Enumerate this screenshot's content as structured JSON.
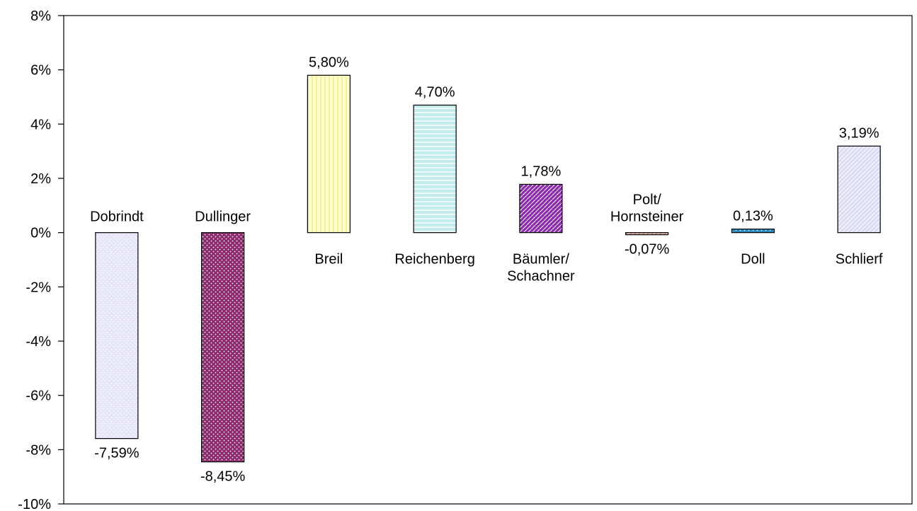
{
  "chart_data": {
    "type": "bar",
    "title": "",
    "xlabel": "",
    "ylabel": "",
    "ylim": [
      -10,
      8
    ],
    "ytick_step": 2,
    "ytick_labels": [
      "-10%",
      "-8%",
      "-6%",
      "-4%",
      "-2%",
      "0%",
      "2%",
      "4%",
      "6%",
      "8%"
    ],
    "grid": false,
    "legend": "none",
    "categories": [
      "Dobrindt",
      "Dullinger",
      "Breil",
      "Reichenberg",
      "Bäumler/\nSchachner",
      "Polt/\nHornsteiner",
      "Doll",
      "Schlierf"
    ],
    "values": [
      -7.59,
      -8.45,
      5.8,
      4.7,
      1.78,
      -0.07,
      0.13,
      3.19
    ],
    "value_labels": [
      "-7,59%",
      "-8,45%",
      "5,80%",
      "4,70%",
      "1,78%",
      "-0,07%",
      "0,13%",
      "3,19%"
    ],
    "bar_colors": [
      "#e6e6f8",
      "#8e2a6e",
      "#ffffcc",
      "#c2ecec",
      "#8e2ab0",
      "#d8a090",
      "#2a88c0",
      "#dcdcf6"
    ],
    "bar_patterns": [
      "dots",
      "dense-dots",
      "vertical",
      "horizontal",
      "diagonal",
      "diagonal",
      "dots",
      "diagonal"
    ]
  }
}
